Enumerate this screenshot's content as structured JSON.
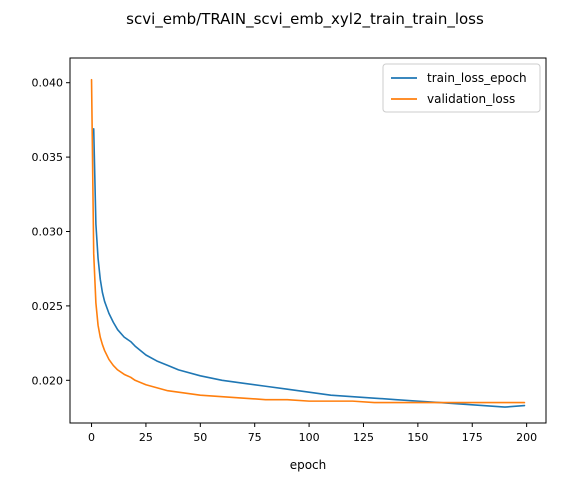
{
  "chart_data": {
    "type": "line",
    "title": "scvi_emb/TRAIN_scvi_emb_xyl2_train_train_loss",
    "xlabel": "epoch",
    "ylabel": "",
    "xlim": [
      -9.9,
      208.9
    ],
    "ylim": [
      0.01713,
      0.04166
    ],
    "grid": false,
    "legend_position": "top-right",
    "x_ticks": [
      0,
      25,
      50,
      75,
      100,
      125,
      150,
      175,
      200
    ],
    "y_ticks": [
      0.02,
      0.025,
      0.03,
      0.035,
      0.04
    ],
    "x_tick_labels": [
      "0",
      "25",
      "50",
      "75",
      "100",
      "125",
      "150",
      "175",
      "200"
    ],
    "y_tick_labels": [
      "0.020",
      "0.025",
      "0.030",
      "0.035",
      "0.040"
    ],
    "series": [
      {
        "name": "train_loss_epoch",
        "color": "#1f77b4",
        "x": [
          1,
          2,
          3,
          4,
          5,
          6,
          8,
          10,
          12,
          15,
          18,
          20,
          25,
          30,
          35,
          40,
          50,
          60,
          70,
          80,
          90,
          100,
          110,
          120,
          130,
          140,
          150,
          160,
          170,
          180,
          190,
          199
        ],
        "y": [
          0.0369,
          0.0305,
          0.0282,
          0.0268,
          0.0259,
          0.0253,
          0.0245,
          0.0239,
          0.0234,
          0.0229,
          0.0226,
          0.0223,
          0.0217,
          0.0213,
          0.021,
          0.0207,
          0.0203,
          0.02,
          0.0198,
          0.0196,
          0.0194,
          0.0192,
          0.019,
          0.0189,
          0.0188,
          0.0187,
          0.0186,
          0.0185,
          0.0184,
          0.0183,
          0.0182,
          0.0183
        ]
      },
      {
        "name": "validation_loss",
        "color": "#ff7f0e",
        "x": [
          0,
          1,
          2,
          3,
          4,
          5,
          6,
          8,
          10,
          12,
          15,
          18,
          20,
          25,
          30,
          35,
          40,
          50,
          60,
          70,
          80,
          90,
          100,
          110,
          120,
          130,
          140,
          150,
          160,
          170,
          180,
          190,
          199
        ],
        "y": [
          0.0402,
          0.0285,
          0.0252,
          0.0237,
          0.0229,
          0.0224,
          0.022,
          0.0214,
          0.021,
          0.0207,
          0.0204,
          0.0202,
          0.02,
          0.0197,
          0.0195,
          0.0193,
          0.0192,
          0.019,
          0.0189,
          0.0188,
          0.0187,
          0.0187,
          0.0186,
          0.0186,
          0.0186,
          0.0185,
          0.0185,
          0.0185,
          0.0185,
          0.0185,
          0.0185,
          0.0185,
          0.0185
        ]
      }
    ]
  }
}
